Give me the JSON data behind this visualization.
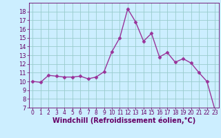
{
  "x": [
    0,
    1,
    2,
    3,
    4,
    5,
    6,
    7,
    8,
    9,
    10,
    11,
    12,
    13,
    14,
    15,
    16,
    17,
    18,
    19,
    20,
    21,
    22,
    23
  ],
  "y": [
    10.0,
    9.9,
    10.7,
    10.6,
    10.5,
    10.5,
    10.6,
    10.3,
    10.5,
    11.1,
    13.4,
    15.0,
    18.3,
    16.8,
    14.6,
    15.5,
    12.8,
    13.3,
    12.2,
    12.6,
    12.1,
    11.0,
    10.0,
    6.8
  ],
  "line_color": "#993399",
  "marker": "D",
  "markersize": 2.5,
  "linewidth": 1.0,
  "xlabel": "Windchill (Refroidissement éolien,°C)",
  "xlabel_fontsize": 7,
  "xtick_fontsize": 5.5,
  "ytick_fontsize": 6,
  "ylim": [
    7,
    19
  ],
  "xlim": [
    -0.5,
    23.5
  ],
  "yticks": [
    7,
    8,
    9,
    10,
    11,
    12,
    13,
    14,
    15,
    16,
    17,
    18
  ],
  "xticks": [
    0,
    1,
    2,
    3,
    4,
    5,
    6,
    7,
    8,
    9,
    10,
    11,
    12,
    13,
    14,
    15,
    16,
    17,
    18,
    19,
    20,
    21,
    22,
    23
  ],
  "background_color": "#cceeff",
  "grid_color": "#99cccc",
  "spine_color": "#660066",
  "tick_color": "#660066",
  "label_color": "#660066"
}
